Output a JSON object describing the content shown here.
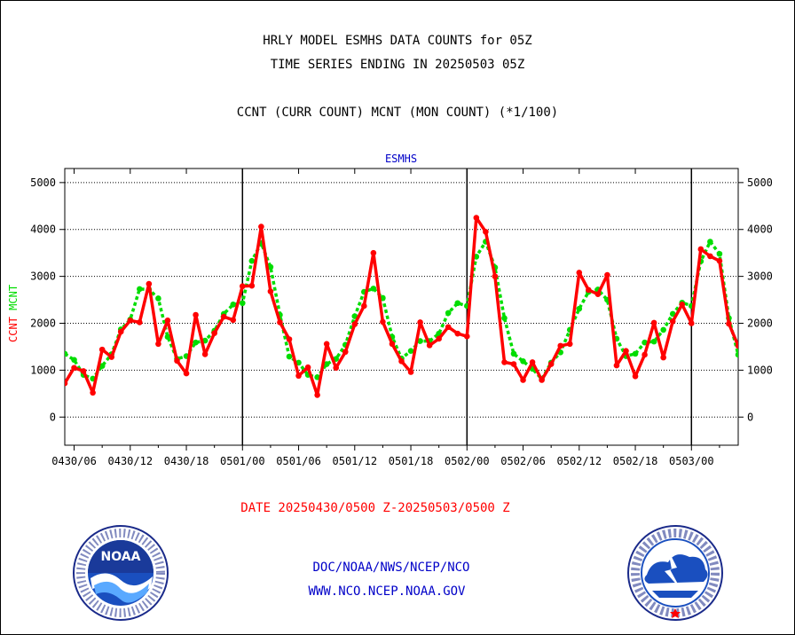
{
  "header": {
    "title_line1": "HRLY MODEL ESMHS DATA COUNTS for 05Z",
    "title_line2": "TIME SERIES ENDING IN 20250503 05Z",
    "title_line3": "CCNT (CURR COUNT) MCNT (MON COUNT) (*1/100)"
  },
  "footer": {
    "org": "DOC/NOAA/NWS/NCEP/NCO",
    "url": "WWW.NCO.NCEP.NOAA.GOV"
  },
  "logos": {
    "left": {
      "icon": "noaa-logo-icon",
      "text": "NOAA"
    },
    "right": {
      "icon": "nws-logo-icon"
    }
  },
  "colors": {
    "ccnt": "#ff0000",
    "mcnt": "#00dd00",
    "subtitle": "#0000c8",
    "footer": "#0000c8"
  },
  "chart_data": {
    "type": "line",
    "subtitle": "ESMHS",
    "xlabel": "DATE 20250430/0500 Z-20250503/0500 Z",
    "ylabel_parts": [
      "CCNT",
      "MCNT"
    ],
    "ylim": [
      -600,
      5300
    ],
    "yticks": [
      0,
      1000,
      2000,
      3000,
      4000,
      5000
    ],
    "grid": true,
    "x_start_label": "20250430/0500 Z",
    "x_end_label": "20250503/0500 Z",
    "x_tick_labels": [
      "0430/06",
      "0430/12",
      "0430/18",
      "0501/00",
      "0501/06",
      "0501/12",
      "0501/18",
      "0502/00",
      "0502/06",
      "0502/12",
      "0502/18",
      "0503/00"
    ],
    "day_boundaries": [
      "0501/00",
      "0502/00",
      "0503/00"
    ],
    "series": [
      {
        "name": "CCNT",
        "values": [
          720,
          1050,
          980,
          520,
          1440,
          1280,
          1820,
          2060,
          2020,
          2840,
          1560,
          2060,
          1200,
          930,
          2180,
          1340,
          1790,
          2140,
          2070,
          2790,
          2800,
          4060,
          2680,
          2020,
          1660,
          880,
          1060,
          470,
          1560,
          1050,
          1390,
          1980,
          2370,
          3500,
          2030,
          1560,
          1190,
          960,
          2020,
          1530,
          1670,
          1920,
          1780,
          1720,
          4250,
          3950,
          3000,
          1170,
          1130,
          790,
          1170,
          790,
          1130,
          1520,
          1560,
          3080,
          2710,
          2620,
          3030,
          1100,
          1410,
          870,
          1330,
          2010,
          1270,
          2040,
          2400,
          2000,
          3580,
          3430,
          3330,
          1990,
          1520
        ]
      },
      {
        "name": "MCNT",
        "values": [
          1350,
          1220,
          900,
          820,
          1090,
          1340,
          1870,
          2080,
          2730,
          2720,
          2530,
          1710,
          1240,
          1300,
          1590,
          1630,
          1840,
          2200,
          2400,
          2430,
          3330,
          3710,
          3200,
          2180,
          1290,
          1160,
          900,
          850,
          1130,
          1240,
          1540,
          2150,
          2670,
          2740,
          2540,
          1710,
          1250,
          1410,
          1620,
          1620,
          1780,
          2220,
          2430,
          2370,
          3420,
          3740,
          3190,
          2110,
          1350,
          1190,
          1030,
          810,
          1160,
          1380,
          1860,
          2310,
          2670,
          2720,
          2500,
          1670,
          1300,
          1350,
          1590,
          1610,
          1860,
          2200,
          2440,
          2370,
          3320,
          3740,
          3480,
          2110,
          1330
        ]
      }
    ]
  }
}
